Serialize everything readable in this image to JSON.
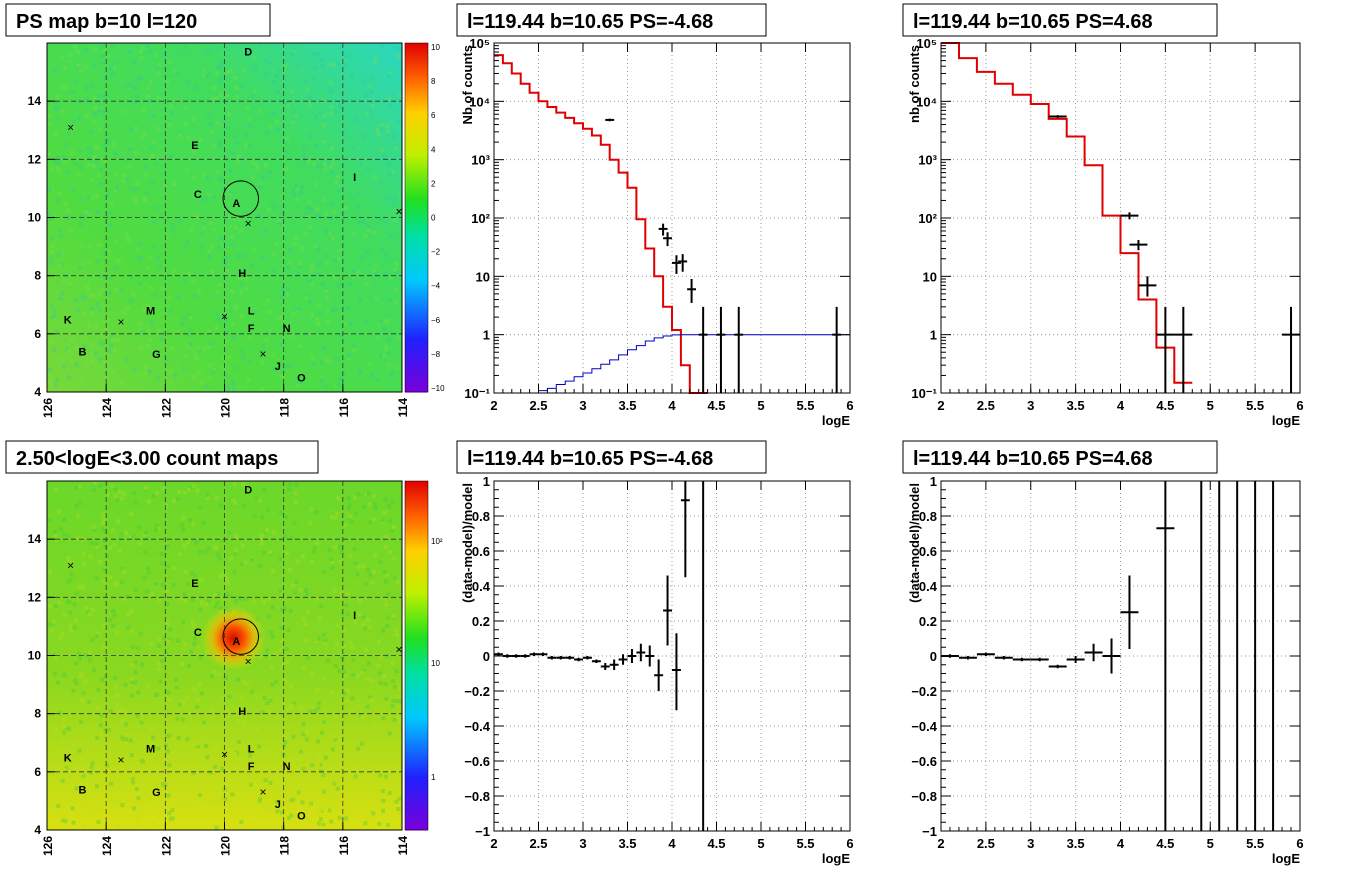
{
  "panels": {
    "ps_map": {
      "title": "PS map b=10 l=120",
      "x_ticks": [
        "126",
        "124",
        "122",
        "120",
        "118",
        "116",
        "114"
      ],
      "y_ticks": [
        "4",
        "6",
        "8",
        "10",
        "12",
        "14"
      ],
      "colorbar_ticks": [
        "10",
        "8",
        "6",
        "4",
        "2",
        "0",
        "−2",
        "−4",
        "−6",
        "−8",
        "−10"
      ]
    },
    "count_map": {
      "title": "2.50<logE<3.00 count maps",
      "x_ticks": [
        "126",
        "124",
        "122",
        "120",
        "118",
        "116",
        "114"
      ],
      "y_ticks": [
        "4",
        "6",
        "8",
        "10",
        "12",
        "14"
      ],
      "colorbar_ticks": [
        "10²",
        "10",
        "1"
      ]
    },
    "source_labels": [
      {
        "name": "D",
        "l": 119.2,
        "b": 15.7
      },
      {
        "name": "E",
        "l": 121.0,
        "b": 12.5
      },
      {
        "name": "I",
        "l": 115.6,
        "b": 11.4
      },
      {
        "name": "C",
        "l": 120.9,
        "b": 10.8
      },
      {
        "name": "A",
        "l": 119.6,
        "b": 10.5
      },
      {
        "name": "H",
        "l": 119.4,
        "b": 8.1
      },
      {
        "name": "M",
        "l": 122.5,
        "b": 6.8
      },
      {
        "name": "L",
        "l": 119.1,
        "b": 6.8
      },
      {
        "name": "K",
        "l": 125.3,
        "b": 6.5
      },
      {
        "name": "F",
        "l": 119.1,
        "b": 6.2
      },
      {
        "name": "N",
        "l": 117.9,
        "b": 6.2
      },
      {
        "name": "B",
        "l": 124.8,
        "b": 5.4
      },
      {
        "name": "G",
        "l": 122.3,
        "b": 5.3
      },
      {
        "name": "J",
        "l": 118.2,
        "b": 4.9
      },
      {
        "name": "O",
        "l": 117.4,
        "b": 4.5
      }
    ],
    "cross_markers": [
      {
        "l": 125.2,
        "b": 13.1
      },
      {
        "l": 119.2,
        "b": 9.8
      },
      {
        "l": 114.1,
        "b": 10.2
      },
      {
        "l": 123.5,
        "b": 6.4
      },
      {
        "l": 120.0,
        "b": 6.6
      },
      {
        "l": 118.7,
        "b": 5.3
      }
    ],
    "circle": {
      "l": 119.45,
      "b": 10.65,
      "r_deg": 0.5
    }
  },
  "chart_data": [
    {
      "type": "line",
      "title": "l=119.44 b=10.65 PS=-4.68",
      "xlabel": "logE",
      "ylabel": "Nb of counts",
      "xlim": [
        2,
        6
      ],
      "ylim": [
        0.1,
        100000
      ],
      "log_y": true,
      "x_ticks": [
        "2",
        "2.5",
        "3",
        "3.5",
        "4",
        "4.5",
        "5",
        "5.5",
        "6"
      ],
      "y_ticks": [
        {
          "v": 0.1,
          "t": "10⁻¹"
        },
        {
          "v": 1,
          "t": "1"
        },
        {
          "v": 10,
          "t": "10"
        },
        {
          "v": 100,
          "t": "10²"
        },
        {
          "v": 1000,
          "t": "10³"
        },
        {
          "v": 10000,
          "t": "10⁴"
        },
        {
          "v": 100000,
          "t": "10⁵"
        }
      ],
      "series": [
        {
          "kind": "step",
          "color": "#e00000",
          "edges": [
            2,
            2.1,
            2.2,
            2.3,
            2.4,
            2.5,
            2.6,
            2.7,
            2.8,
            2.9,
            3.0,
            3.1,
            3.2,
            3.3,
            3.4,
            3.5,
            3.6,
            3.7,
            3.8,
            3.9,
            4.0,
            4.1,
            4.2,
            4.3,
            4.4
          ],
          "values": [
            62000,
            45000,
            30000,
            20000,
            14000,
            10000,
            8000,
            6400,
            5200,
            4200,
            3400,
            2600,
            1800,
            1000,
            600,
            330,
            95,
            30,
            10,
            3,
            1.2,
            0.3,
            0.1,
            0.1
          ]
        },
        {
          "kind": "step",
          "color": "#0000c0",
          "edges": [
            2.4,
            2.5,
            2.6,
            2.7,
            2.8,
            2.9,
            3.0,
            3.1,
            3.2,
            3.3,
            3.4,
            3.5,
            3.6,
            3.7,
            3.8,
            3.9,
            4.0,
            4.1,
            4.2,
            4.3,
            4.4,
            6.0
          ],
          "values": [
            0.1,
            0.11,
            0.12,
            0.14,
            0.16,
            0.19,
            0.22,
            0.26,
            0.31,
            0.37,
            0.45,
            0.55,
            0.65,
            0.78,
            0.88,
            0.95,
            0.99,
            1.0,
            1.0,
            1.0,
            1.0
          ]
        },
        {
          "kind": "points",
          "color": "#000000",
          "points": [
            {
              "x": 3.3,
              "y": 4800,
              "xe": 0.05,
              "lo": 4550,
              "hi": 5050
            },
            {
              "x": 3.9,
              "y": 65,
              "xe": 0.05,
              "lo": 50,
              "hi": 80
            },
            {
              "x": 3.95,
              "y": 45,
              "xe": 0.05,
              "lo": 33,
              "hi": 57
            },
            {
              "x": 4.05,
              "y": 17,
              "xe": 0.05,
              "lo": 11,
              "hi": 23
            },
            {
              "x": 4.12,
              "y": 18,
              "xe": 0.05,
              "lo": 12,
              "hi": 24
            },
            {
              "x": 4.22,
              "y": 6,
              "xe": 0.05,
              "lo": 3.5,
              "hi": 9
            },
            {
              "x": 4.35,
              "y": 1,
              "xe": 0.05,
              "lo": 0.1,
              "hi": 3
            },
            {
              "x": 4.55,
              "y": 1,
              "xe": 0.05,
              "lo": 0.1,
              "hi": 3
            },
            {
              "x": 4.75,
              "y": 1,
              "xe": 0.05,
              "lo": 0.1,
              "hi": 3
            },
            {
              "x": 5.85,
              "y": 1,
              "xe": 0.05,
              "lo": 0.1,
              "hi": 3
            }
          ]
        }
      ]
    },
    {
      "type": "line",
      "title": "l=119.44 b=10.65 PS=4.68",
      "xlabel": "logE",
      "ylabel": "nb of counts",
      "xlim": [
        2,
        6
      ],
      "ylim": [
        0.1,
        100000
      ],
      "log_y": true,
      "x_ticks": [
        "2",
        "2.5",
        "3",
        "3.5",
        "4",
        "4.5",
        "5",
        "5.5",
        "6"
      ],
      "y_ticks": [
        {
          "v": 0.1,
          "t": "10⁻¹"
        },
        {
          "v": 1,
          "t": "1"
        },
        {
          "v": 10,
          "t": "10"
        },
        {
          "v": 100,
          "t": "10²"
        },
        {
          "v": 1000,
          "t": "10³"
        },
        {
          "v": 10000,
          "t": "10⁴"
        },
        {
          "v": 100000,
          "t": "10⁵"
        }
      ],
      "series": [
        {
          "kind": "step",
          "color": "#e00000",
          "edges": [
            2,
            2.2,
            2.4,
            2.6,
            2.8,
            3.0,
            3.2,
            3.4,
            3.6,
            3.8,
            4.0,
            4.2,
            4.4,
            4.6,
            4.8
          ],
          "values": [
            100000,
            55000,
            32000,
            20000,
            13000,
            9000,
            5000,
            2500,
            800,
            110,
            25,
            4,
            0.6,
            0.15
          ]
        },
        {
          "kind": "points",
          "color": "#000000",
          "points": [
            {
              "x": 3.3,
              "y": 5500,
              "xe": 0.1,
              "lo": 5200,
              "hi": 5800
            },
            {
              "x": 4.1,
              "y": 110,
              "xe": 0.1,
              "lo": 95,
              "hi": 125
            },
            {
              "x": 4.2,
              "y": 35,
              "xe": 0.1,
              "lo": 28,
              "hi": 42
            },
            {
              "x": 4.3,
              "y": 7,
              "xe": 0.1,
              "lo": 4.5,
              "hi": 10
            },
            {
              "x": 4.5,
              "y": 1,
              "xe": 0.1,
              "lo": 0.1,
              "hi": 3
            },
            {
              "x": 4.7,
              "y": 1,
              "xe": 0.1,
              "lo": 0.1,
              "hi": 3
            },
            {
              "x": 5.9,
              "y": 1,
              "xe": 0.1,
              "lo": 0.1,
              "hi": 3
            }
          ]
        }
      ]
    },
    {
      "type": "scatter",
      "title": "l=119.44 b=10.65 PS=-4.68",
      "xlabel": "logE",
      "ylabel": "(data-model)/model",
      "xlim": [
        2,
        6
      ],
      "ylim": [
        -1,
        1
      ],
      "log_y": false,
      "x_ticks": [
        "2",
        "2.5",
        "3",
        "3.5",
        "4",
        "4.5",
        "5",
        "5.5",
        "6"
      ],
      "y_ticks": [
        {
          "v": -1,
          "t": "−1"
        },
        {
          "v": -0.8,
          "t": "−0.8"
        },
        {
          "v": -0.6,
          "t": "−0.6"
        },
        {
          "v": -0.4,
          "t": "−0.4"
        },
        {
          "v": -0.2,
          "t": "−0.2"
        },
        {
          "v": 0,
          "t": "0"
        },
        {
          "v": 0.2,
          "t": "0.2"
        },
        {
          "v": 0.4,
          "t": "0.4"
        },
        {
          "v": 0.6,
          "t": "0.6"
        },
        {
          "v": 0.8,
          "t": "0.8"
        },
        {
          "v": 1,
          "t": "1"
        }
      ],
      "series": [
        {
          "kind": "points",
          "color": "#000000",
          "points": [
            {
              "x": 2.05,
              "y": 0.01,
              "xe": 0.05,
              "lo": 0.0,
              "hi": 0.02
            },
            {
              "x": 2.15,
              "y": 0.0,
              "xe": 0.05,
              "lo": -0.01,
              "hi": 0.01
            },
            {
              "x": 2.25,
              "y": 0.0,
              "xe": 0.05,
              "lo": -0.01,
              "hi": 0.01
            },
            {
              "x": 2.35,
              "y": 0.0,
              "xe": 0.05,
              "lo": -0.01,
              "hi": 0.01
            },
            {
              "x": 2.45,
              "y": 0.01,
              "xe": 0.05,
              "lo": 0.0,
              "hi": 0.02
            },
            {
              "x": 2.55,
              "y": 0.01,
              "xe": 0.05,
              "lo": 0.0,
              "hi": 0.02
            },
            {
              "x": 2.65,
              "y": -0.01,
              "xe": 0.05,
              "lo": -0.02,
              "hi": 0.0
            },
            {
              "x": 2.75,
              "y": -0.01,
              "xe": 0.05,
              "lo": -0.02,
              "hi": 0.0
            },
            {
              "x": 2.85,
              "y": -0.01,
              "xe": 0.05,
              "lo": -0.02,
              "hi": 0.0
            },
            {
              "x": 2.95,
              "y": -0.02,
              "xe": 0.05,
              "lo": -0.03,
              "hi": -0.01
            },
            {
              "x": 3.05,
              "y": -0.01,
              "xe": 0.05,
              "lo": -0.02,
              "hi": 0.0
            },
            {
              "x": 3.15,
              "y": -0.03,
              "xe": 0.05,
              "lo": -0.04,
              "hi": -0.02
            },
            {
              "x": 3.25,
              "y": -0.06,
              "xe": 0.05,
              "lo": -0.08,
              "hi": -0.04
            },
            {
              "x": 3.35,
              "y": -0.05,
              "xe": 0.05,
              "lo": -0.08,
              "hi": -0.02
            },
            {
              "x": 3.45,
              "y": -0.02,
              "xe": 0.05,
              "lo": -0.05,
              "hi": 0.01
            },
            {
              "x": 3.55,
              "y": 0.0,
              "xe": 0.05,
              "lo": -0.04,
              "hi": 0.04
            },
            {
              "x": 3.65,
              "y": 0.02,
              "xe": 0.05,
              "lo": -0.03,
              "hi": 0.07
            },
            {
              "x": 3.75,
              "y": 0.0,
              "xe": 0.05,
              "lo": -0.06,
              "hi": 0.06
            },
            {
              "x": 3.85,
              "y": -0.11,
              "xe": 0.05,
              "lo": -0.2,
              "hi": -0.02
            },
            {
              "x": 3.95,
              "y": 0.26,
              "xe": 0.05,
              "lo": 0.06,
              "hi": 0.46
            },
            {
              "x": 4.05,
              "y": -0.08,
              "xe": 0.05,
              "lo": -0.31,
              "hi": 0.13
            },
            {
              "x": 4.15,
              "y": 0.89,
              "xe": 0.05,
              "lo": 0.45,
              "hi": 1.0
            },
            {
              "x": 4.35,
              "y": 0.17,
              "xe": 0.0,
              "lo": -1.0,
              "hi": 1.0
            }
          ]
        }
      ]
    },
    {
      "type": "scatter",
      "title": "l=119.44 b=10.65 PS=4.68",
      "xlabel": "logE",
      "ylabel": "(data-model)/model",
      "xlim": [
        2,
        6
      ],
      "ylim": [
        -1,
        1
      ],
      "log_y": false,
      "x_ticks": [
        "2",
        "2.5",
        "3",
        "3.5",
        "4",
        "4.5",
        "5",
        "5.5",
        "6"
      ],
      "y_ticks": [
        {
          "v": -1,
          "t": "−1"
        },
        {
          "v": -0.8,
          "t": "−0.8"
        },
        {
          "v": -0.6,
          "t": "−0.6"
        },
        {
          "v": -0.4,
          "t": "−0.4"
        },
        {
          "v": -0.2,
          "t": "−0.2"
        },
        {
          "v": 0,
          "t": "0"
        },
        {
          "v": 0.2,
          "t": "0.2"
        },
        {
          "v": 0.4,
          "t": "0.4"
        },
        {
          "v": 0.6,
          "t": "0.6"
        },
        {
          "v": 0.8,
          "t": "0.8"
        },
        {
          "v": 1,
          "t": "1"
        }
      ],
      "series": [
        {
          "kind": "points",
          "color": "#000000",
          "points": [
            {
              "x": 2.1,
              "y": 0.0,
              "xe": 0.1,
              "lo": -0.01,
              "hi": 0.01
            },
            {
              "x": 2.3,
              "y": -0.01,
              "xe": 0.1,
              "lo": -0.02,
              "hi": 0.0
            },
            {
              "x": 2.5,
              "y": 0.01,
              "xe": 0.1,
              "lo": 0.0,
              "hi": 0.02
            },
            {
              "x": 2.7,
              "y": -0.01,
              "xe": 0.1,
              "lo": -0.02,
              "hi": 0.0
            },
            {
              "x": 2.9,
              "y": -0.02,
              "xe": 0.1,
              "lo": -0.03,
              "hi": -0.01
            },
            {
              "x": 3.1,
              "y": -0.02,
              "xe": 0.1,
              "lo": -0.03,
              "hi": -0.01
            },
            {
              "x": 3.3,
              "y": -0.06,
              "xe": 0.1,
              "lo": -0.07,
              "hi": -0.05
            },
            {
              "x": 3.5,
              "y": -0.02,
              "xe": 0.1,
              "lo": -0.04,
              "hi": 0.0
            },
            {
              "x": 3.7,
              "y": 0.02,
              "xe": 0.1,
              "lo": -0.03,
              "hi": 0.07
            },
            {
              "x": 3.9,
              "y": 0.0,
              "xe": 0.1,
              "lo": -0.1,
              "hi": 0.1
            },
            {
              "x": 4.1,
              "y": 0.25,
              "xe": 0.1,
              "lo": 0.04,
              "hi": 0.46
            },
            {
              "x": 4.5,
              "y": 0.73,
              "xe": 0.1,
              "lo": -1.0,
              "hi": 1.0
            },
            {
              "x": 4.9,
              "y": 1.0,
              "xe": 0.0,
              "lo": -1.0,
              "hi": 1.0
            },
            {
              "x": 5.1,
              "y": 1.0,
              "xe": 0.0,
              "lo": -1.0,
              "hi": 1.0
            },
            {
              "x": 5.3,
              "y": 1.0,
              "xe": 0.0,
              "lo": -1.0,
              "hi": 1.0
            },
            {
              "x": 5.5,
              "y": 1.0,
              "xe": 0.0,
              "lo": -1.0,
              "hi": 1.0
            },
            {
              "x": 5.7,
              "y": 1.0,
              "xe": 0.0,
              "lo": -1.0,
              "hi": 1.0
            }
          ]
        }
      ]
    }
  ]
}
